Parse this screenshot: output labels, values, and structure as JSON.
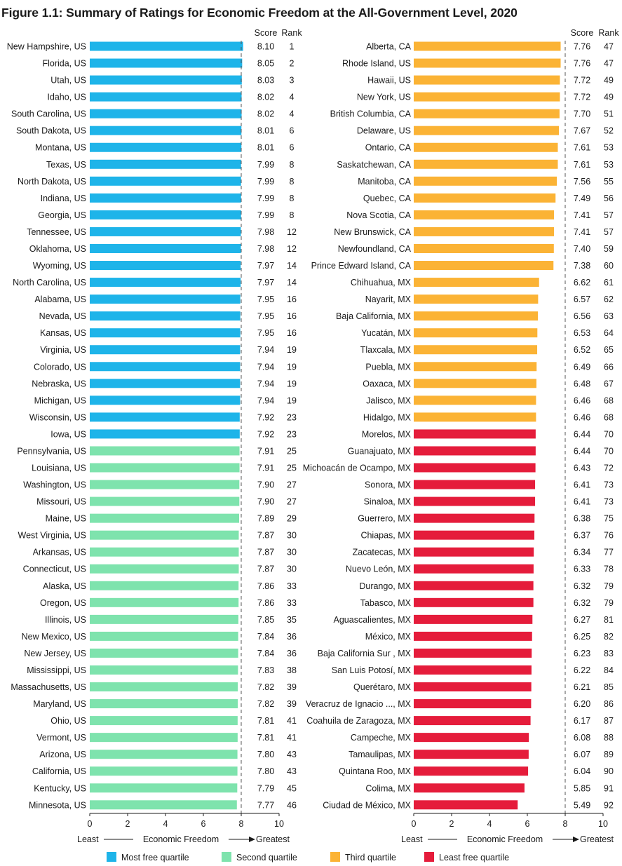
{
  "figure": {
    "title": "Figure 1.1: Summary of Ratings for Economic Freedom at the All-Government Level, 2020"
  },
  "column_headers": {
    "score": "Score",
    "rank": "Rank"
  },
  "axis_caption": {
    "least": "Least",
    "middle": "Economic Freedom",
    "greatest": "Greatest"
  },
  "colors": {
    "Most free quartile": "#1eb4e9",
    "Second quartile": "#7ee3ad",
    "Third quartile": "#fbb335",
    "Least free quartile": "#e51c3b"
  },
  "chart_data": {
    "type": "bar",
    "orientation": "horizontal",
    "xlim": [
      0,
      10
    ],
    "xticks": [
      "0",
      "2",
      "4",
      "6",
      "8",
      "10"
    ],
    "grid": false,
    "reference_line": 8,
    "legend": {
      "placement": "bottom",
      "entries": [
        "Most free quartile",
        "Second quartile",
        "Third quartile",
        "Least free quartile"
      ]
    },
    "panels": [
      {
        "rows": [
          {
            "name": "New Hampshire, US",
            "score": "8.10",
            "rank": "1",
            "quartile": "Most free quartile"
          },
          {
            "name": "Florida, US",
            "score": "8.05",
            "rank": "2",
            "quartile": "Most free quartile"
          },
          {
            "name": "Utah, US",
            "score": "8.03",
            "rank": "3",
            "quartile": "Most free quartile"
          },
          {
            "name": "Idaho, US",
            "score": "8.02",
            "rank": "4",
            "quartile": "Most free quartile"
          },
          {
            "name": "South Carolina, US",
            "score": "8.02",
            "rank": "4",
            "quartile": "Most free quartile"
          },
          {
            "name": "South Dakota, US",
            "score": "8.01",
            "rank": "6",
            "quartile": "Most free quartile"
          },
          {
            "name": "Montana, US",
            "score": "8.01",
            "rank": "6",
            "quartile": "Most free quartile"
          },
          {
            "name": "Texas, US",
            "score": "7.99",
            "rank": "8",
            "quartile": "Most free quartile"
          },
          {
            "name": "North Dakota, US",
            "score": "7.99",
            "rank": "8",
            "quartile": "Most free quartile"
          },
          {
            "name": "Indiana, US",
            "score": "7.99",
            "rank": "8",
            "quartile": "Most free quartile"
          },
          {
            "name": "Georgia, US",
            "score": "7.99",
            "rank": "8",
            "quartile": "Most free quartile"
          },
          {
            "name": "Tennessee, US",
            "score": "7.98",
            "rank": "12",
            "quartile": "Most free quartile"
          },
          {
            "name": "Oklahoma, US",
            "score": "7.98",
            "rank": "12",
            "quartile": "Most free quartile"
          },
          {
            "name": "Wyoming, US",
            "score": "7.97",
            "rank": "14",
            "quartile": "Most free quartile"
          },
          {
            "name": "North Carolina, US",
            "score": "7.97",
            "rank": "14",
            "quartile": "Most free quartile"
          },
          {
            "name": "Alabama, US",
            "score": "7.95",
            "rank": "16",
            "quartile": "Most free quartile"
          },
          {
            "name": "Nevada, US",
            "score": "7.95",
            "rank": "16",
            "quartile": "Most free quartile"
          },
          {
            "name": "Kansas, US",
            "score": "7.95",
            "rank": "16",
            "quartile": "Most free quartile"
          },
          {
            "name": "Virginia, US",
            "score": "7.94",
            "rank": "19",
            "quartile": "Most free quartile"
          },
          {
            "name": "Colorado, US",
            "score": "7.94",
            "rank": "19",
            "quartile": "Most free quartile"
          },
          {
            "name": "Nebraska, US",
            "score": "7.94",
            "rank": "19",
            "quartile": "Most free quartile"
          },
          {
            "name": "Michigan, US",
            "score": "7.94",
            "rank": "19",
            "quartile": "Most free quartile"
          },
          {
            "name": "Wisconsin, US",
            "score": "7.92",
            "rank": "23",
            "quartile": "Most free quartile"
          },
          {
            "name": "Iowa, US",
            "score": "7.92",
            "rank": "23",
            "quartile": "Most free quartile"
          },
          {
            "name": "Pennsylvania, US",
            "score": "7.91",
            "rank": "25",
            "quartile": "Second quartile"
          },
          {
            "name": "Louisiana, US",
            "score": "7.91",
            "rank": "25",
            "quartile": "Second quartile"
          },
          {
            "name": "Washington, US",
            "score": "7.90",
            "rank": "27",
            "quartile": "Second quartile"
          },
          {
            "name": "Missouri, US",
            "score": "7.90",
            "rank": "27",
            "quartile": "Second quartile"
          },
          {
            "name": "Maine, US",
            "score": "7.89",
            "rank": "29",
            "quartile": "Second quartile"
          },
          {
            "name": "West Virginia, US",
            "score": "7.87",
            "rank": "30",
            "quartile": "Second quartile"
          },
          {
            "name": "Arkansas, US",
            "score": "7.87",
            "rank": "30",
            "quartile": "Second quartile"
          },
          {
            "name": "Connecticut, US",
            "score": "7.87",
            "rank": "30",
            "quartile": "Second quartile"
          },
          {
            "name": "Alaska, US",
            "score": "7.86",
            "rank": "33",
            "quartile": "Second quartile"
          },
          {
            "name": "Oregon, US",
            "score": "7.86",
            "rank": "33",
            "quartile": "Second quartile"
          },
          {
            "name": "Illinois, US",
            "score": "7.85",
            "rank": "35",
            "quartile": "Second quartile"
          },
          {
            "name": "New Mexico, US",
            "score": "7.84",
            "rank": "36",
            "quartile": "Second quartile"
          },
          {
            "name": "New Jersey, US",
            "score": "7.84",
            "rank": "36",
            "quartile": "Second quartile"
          },
          {
            "name": "Mississippi, US",
            "score": "7.83",
            "rank": "38",
            "quartile": "Second quartile"
          },
          {
            "name": "Massachusetts, US",
            "score": "7.82",
            "rank": "39",
            "quartile": "Second quartile"
          },
          {
            "name": "Maryland, US",
            "score": "7.82",
            "rank": "39",
            "quartile": "Second quartile"
          },
          {
            "name": "Ohio, US",
            "score": "7.81",
            "rank": "41",
            "quartile": "Second quartile"
          },
          {
            "name": "Vermont, US",
            "score": "7.81",
            "rank": "41",
            "quartile": "Second quartile"
          },
          {
            "name": "Arizona, US",
            "score": "7.80",
            "rank": "43",
            "quartile": "Second quartile"
          },
          {
            "name": "California, US",
            "score": "7.80",
            "rank": "43",
            "quartile": "Second quartile"
          },
          {
            "name": "Kentucky, US",
            "score": "7.79",
            "rank": "45",
            "quartile": "Second quartile"
          },
          {
            "name": "Minnesota, US",
            "score": "7.77",
            "rank": "46",
            "quartile": "Second quartile"
          }
        ]
      },
      {
        "rows": [
          {
            "name": "Alberta, CA",
            "score": "7.76",
            "rank": "47",
            "quartile": "Third quartile"
          },
          {
            "name": "Rhode Island, US",
            "score": "7.76",
            "rank": "47",
            "quartile": "Third quartile"
          },
          {
            "name": "Hawaii, US",
            "score": "7.72",
            "rank": "49",
            "quartile": "Third quartile"
          },
          {
            "name": "New York, US",
            "score": "7.72",
            "rank": "49",
            "quartile": "Third quartile"
          },
          {
            "name": "British Columbia, CA",
            "score": "7.70",
            "rank": "51",
            "quartile": "Third quartile"
          },
          {
            "name": "Delaware, US",
            "score": "7.67",
            "rank": "52",
            "quartile": "Third quartile"
          },
          {
            "name": "Ontario, CA",
            "score": "7.61",
            "rank": "53",
            "quartile": "Third quartile"
          },
          {
            "name": "Saskatchewan, CA",
            "score": "7.61",
            "rank": "53",
            "quartile": "Third quartile"
          },
          {
            "name": "Manitoba, CA",
            "score": "7.56",
            "rank": "55",
            "quartile": "Third quartile"
          },
          {
            "name": "Quebec, CA",
            "score": "7.49",
            "rank": "56",
            "quartile": "Third quartile"
          },
          {
            "name": "Nova Scotia, CA",
            "score": "7.41",
            "rank": "57",
            "quartile": "Third quartile"
          },
          {
            "name": "New Brunswick, CA",
            "score": "7.41",
            "rank": "57",
            "quartile": "Third quartile"
          },
          {
            "name": "Newfoundland, CA",
            "score": "7.40",
            "rank": "59",
            "quartile": "Third quartile"
          },
          {
            "name": "Prince Edward Island, CA",
            "score": "7.38",
            "rank": "60",
            "quartile": "Third quartile"
          },
          {
            "name": "Chihuahua, MX",
            "score": "6.62",
            "rank": "61",
            "quartile": "Third quartile"
          },
          {
            "name": "Nayarit, MX",
            "score": "6.57",
            "rank": "62",
            "quartile": "Third quartile"
          },
          {
            "name": "Baja California, MX",
            "score": "6.56",
            "rank": "63",
            "quartile": "Third quartile"
          },
          {
            "name": "Yucatán, MX",
            "score": "6.53",
            "rank": "64",
            "quartile": "Third quartile"
          },
          {
            "name": "Tlaxcala, MX",
            "score": "6.52",
            "rank": "65",
            "quartile": "Third quartile"
          },
          {
            "name": "Puebla, MX",
            "score": "6.49",
            "rank": "66",
            "quartile": "Third quartile"
          },
          {
            "name": "Oaxaca, MX",
            "score": "6.48",
            "rank": "67",
            "quartile": "Third quartile"
          },
          {
            "name": "Jalisco, MX",
            "score": "6.46",
            "rank": "68",
            "quartile": "Third quartile"
          },
          {
            "name": "Hidalgo, MX",
            "score": "6.46",
            "rank": "68",
            "quartile": "Third quartile"
          },
          {
            "name": "Morelos, MX",
            "score": "6.44",
            "rank": "70",
            "quartile": "Least free quartile"
          },
          {
            "name": "Guanajuato, MX",
            "score": "6.44",
            "rank": "70",
            "quartile": "Least free quartile"
          },
          {
            "name": "Michoacán de Ocampo, MX",
            "score": "6.43",
            "rank": "72",
            "quartile": "Least free quartile"
          },
          {
            "name": "Sonora, MX",
            "score": "6.41",
            "rank": "73",
            "quartile": "Least free quartile"
          },
          {
            "name": "Sinaloa, MX",
            "score": "6.41",
            "rank": "73",
            "quartile": "Least free quartile"
          },
          {
            "name": "Guerrero, MX",
            "score": "6.38",
            "rank": "75",
            "quartile": "Least free quartile"
          },
          {
            "name": "Chiapas, MX",
            "score": "6.37",
            "rank": "76",
            "quartile": "Least free quartile"
          },
          {
            "name": "Zacatecas, MX",
            "score": "6.34",
            "rank": "77",
            "quartile": "Least free quartile"
          },
          {
            "name": "Nuevo León, MX",
            "score": "6.33",
            "rank": "78",
            "quartile": "Least free quartile"
          },
          {
            "name": "Durango, MX",
            "score": "6.32",
            "rank": "79",
            "quartile": "Least free quartile"
          },
          {
            "name": "Tabasco, MX",
            "score": "6.32",
            "rank": "79",
            "quartile": "Least free quartile"
          },
          {
            "name": "Aguascalientes, MX",
            "score": "6.27",
            "rank": "81",
            "quartile": "Least free quartile"
          },
          {
            "name": "México, MX",
            "score": "6.25",
            "rank": "82",
            "quartile": "Least free quartile"
          },
          {
            "name": "Baja California Sur , MX",
            "score": "6.23",
            "rank": "83",
            "quartile": "Least free quartile"
          },
          {
            "name": "San Luis Potosí, MX",
            "score": "6.22",
            "rank": "84",
            "quartile": "Least free quartile"
          },
          {
            "name": "Querétaro, MX",
            "score": "6.21",
            "rank": "85",
            "quartile": "Least free quartile"
          },
          {
            "name": "Veracruz de Ignacio ..., MX",
            "score": "6.20",
            "rank": "86",
            "quartile": "Least free quartile"
          },
          {
            "name": "Coahuila de Zaragoza, MX",
            "score": "6.17",
            "rank": "87",
            "quartile": "Least free quartile"
          },
          {
            "name": "Campeche, MX",
            "score": "6.08",
            "rank": "88",
            "quartile": "Least free quartile"
          },
          {
            "name": "Tamaulipas, MX",
            "score": "6.07",
            "rank": "89",
            "quartile": "Least free quartile"
          },
          {
            "name": "Quintana Roo, MX",
            "score": "6.04",
            "rank": "90",
            "quartile": "Least free quartile"
          },
          {
            "name": "Colima, MX",
            "score": "5.85",
            "rank": "91",
            "quartile": "Least free quartile"
          },
          {
            "name": "Ciudad de México, MX",
            "score": "5.49",
            "rank": "92",
            "quartile": "Least free quartile"
          }
        ]
      }
    ]
  }
}
